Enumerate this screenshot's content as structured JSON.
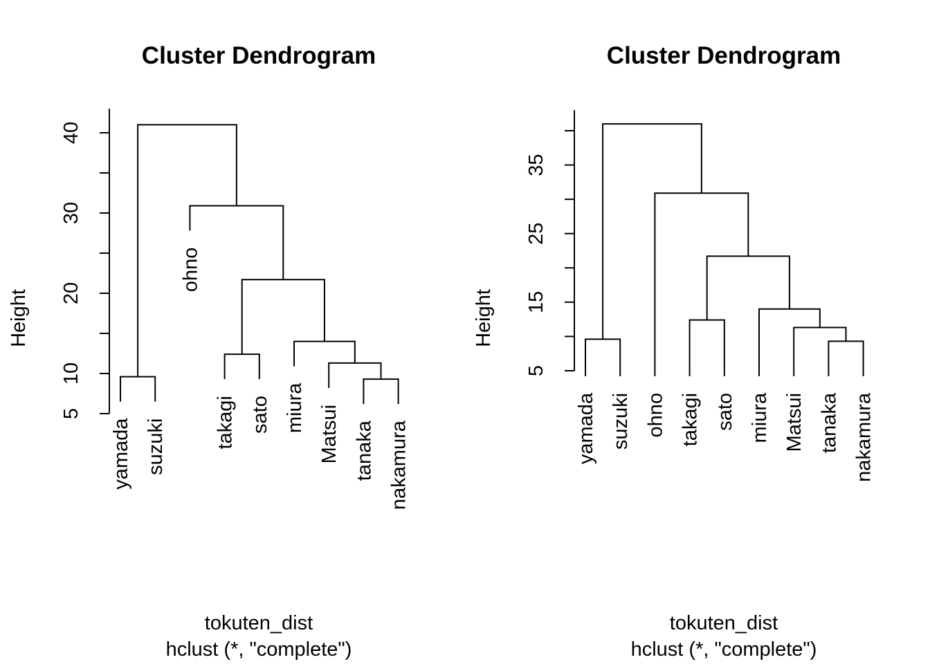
{
  "chart_data": [
    {
      "type": "dendrogram",
      "title": "Cluster Dendrogram",
      "ylabel": "Height",
      "xlabel": "tokuten_dist",
      "sub": "hclust (*, \"complete\")",
      "hang": true,
      "ylim": [
        5,
        43
      ],
      "yticks": [
        5,
        10,
        20,
        30,
        40
      ],
      "yticks_minor": [
        15,
        25,
        35
      ],
      "labels": [
        "yamada",
        "suzuki",
        "ohno",
        "takagi",
        "sato",
        "miura",
        "Matsui",
        "tanaka",
        "nakamura"
      ],
      "merges": [
        {
          "left": "yamada",
          "right": "suzuki",
          "height": 9.6
        },
        {
          "left": "takagi",
          "right": "sato",
          "height": 12.4
        },
        {
          "left": "tanaka",
          "right": "nakamura",
          "height": 9.3
        },
        {
          "left": "Matsui",
          "right": "tanaka+nakamura",
          "height": 11.3
        },
        {
          "left": "miura",
          "right": "Matsui+tanaka+nakamura",
          "height": 14.0
        },
        {
          "left": "takagi+sato",
          "right": "miura+Matsui+tanaka+nakamura",
          "height": 21.7
        },
        {
          "left": "ohno",
          "right": "takagi..nakamura",
          "height": 30.9
        },
        {
          "left": "yamada+suzuki",
          "right": "ohno..nakamura",
          "height": 41.0
        }
      ]
    },
    {
      "type": "dendrogram",
      "title": "Cluster Dendrogram",
      "ylabel": "Height",
      "xlabel": "tokuten_dist",
      "sub": "hclust (*, \"complete\")",
      "hang": false,
      "ylim": [
        5,
        43
      ],
      "yticks": [
        5,
        15,
        25,
        35
      ],
      "yticks_minor": [
        10,
        20,
        30,
        40
      ],
      "labels": [
        "yamada",
        "suzuki",
        "ohno",
        "takagi",
        "sato",
        "miura",
        "Matsui",
        "tanaka",
        "nakamura"
      ],
      "merges": [
        {
          "left": "yamada",
          "right": "suzuki",
          "height": 9.6
        },
        {
          "left": "takagi",
          "right": "sato",
          "height": 12.4
        },
        {
          "left": "tanaka",
          "right": "nakamura",
          "height": 9.3
        },
        {
          "left": "Matsui",
          "right": "tanaka+nakamura",
          "height": 11.3
        },
        {
          "left": "miura",
          "right": "Matsui+tanaka+nakamura",
          "height": 14.0
        },
        {
          "left": "takagi+sato",
          "right": "miura+Matsui+tanaka+nakamura",
          "height": 21.7
        },
        {
          "left": "ohno",
          "right": "takagi..nakamura",
          "height": 30.9
        },
        {
          "left": "yamada+suzuki",
          "right": "ohno..nakamura",
          "height": 41.0
        }
      ]
    }
  ]
}
